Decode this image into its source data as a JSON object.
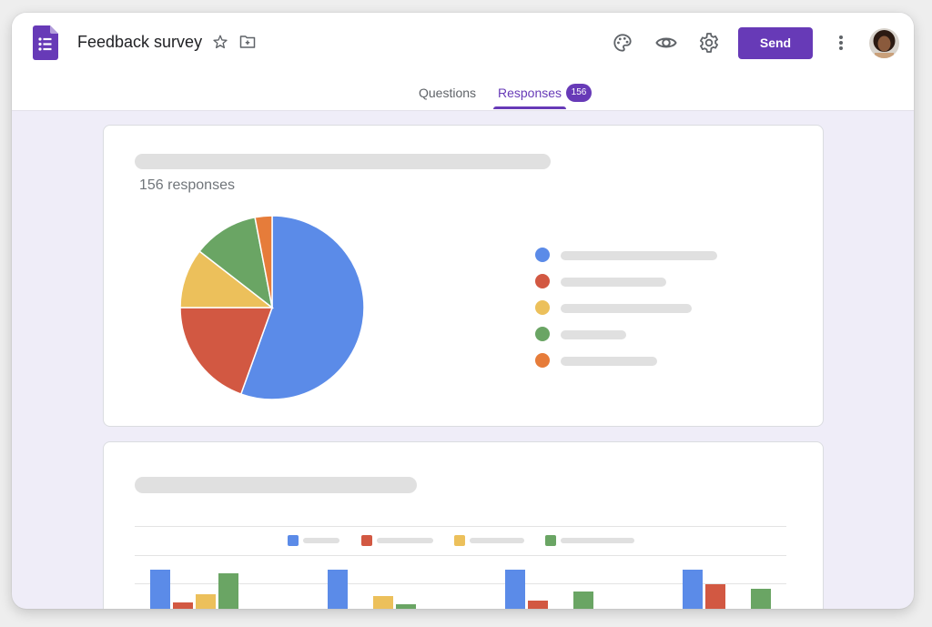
{
  "header": {
    "title": "Feedback survey",
    "send_label": "Send",
    "icons": [
      "forms-logo-icon",
      "star-icon",
      "move-to-folder-icon",
      "palette-icon",
      "eye-icon",
      "gear-icon",
      "more-vert-icon"
    ]
  },
  "tabs": [
    {
      "label": "Questions",
      "active": false
    },
    {
      "label": "Responses",
      "active": true,
      "badge": "156"
    }
  ],
  "colors": {
    "accent": "#673ab7",
    "blue": "#5b8be8",
    "red": "#d25842",
    "yellow": "#ecc05b",
    "green": "#6aa564",
    "orange": "#e67c3a"
  },
  "summary_card": {
    "responses_text": "156 responses"
  },
  "chart_data": [
    {
      "type": "pie",
      "title": "",
      "series": [
        {
          "color": "#5b8be8",
          "value": 55.5
        },
        {
          "color": "#d25842",
          "value": 19.5
        },
        {
          "color": "#ecc05b",
          "value": 10.5
        },
        {
          "color": "#6aa564",
          "value": 11.5
        },
        {
          "color": "#e67c3a",
          "value": 3.0
        }
      ]
    },
    {
      "type": "bar",
      "title": "",
      "categories": [
        "",
        "",
        "",
        ""
      ],
      "series": [
        {
          "color": "#5b8be8",
          "values": [
            50,
            50,
            50,
            50
          ]
        },
        {
          "color": "#d25842",
          "values": [
            14,
            3,
            16,
            34
          ]
        },
        {
          "color": "#ecc05b",
          "values": [
            23,
            21,
            0,
            5
          ]
        },
        {
          "color": "#6aa564",
          "values": [
            46,
            12,
            26,
            29
          ]
        }
      ]
    }
  ]
}
